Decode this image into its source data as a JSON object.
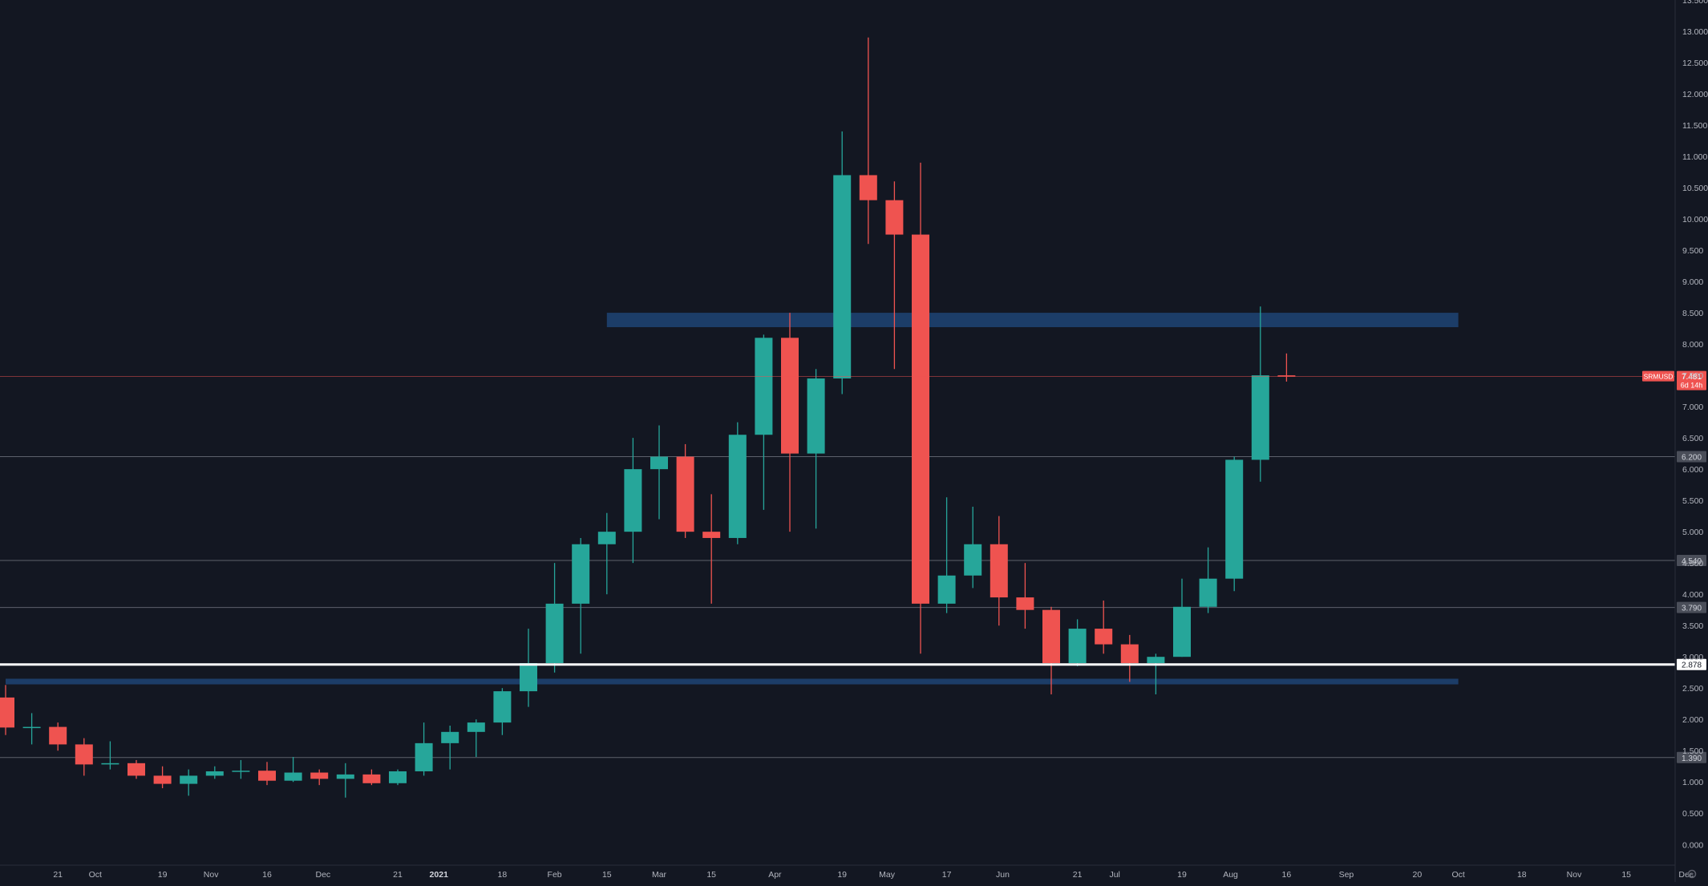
{
  "chart_data": {
    "type": "candlestick",
    "symbol": "SRMUSD",
    "timeframe": "weekly",
    "ylim": [
      -0.33,
      13.5
    ],
    "y_ticks": [
      "0.000",
      "0.500",
      "1.000",
      "1.500",
      "2.000",
      "2.500",
      "3.000",
      "3.500",
      "4.000",
      "4.500",
      "5.000",
      "5.500",
      "6.000",
      "6.500",
      "7.000",
      "7.500",
      "8.000",
      "8.500",
      "9.000",
      "9.500",
      "10.000",
      "10.500",
      "11.000",
      "11.500",
      "12.000",
      "12.500",
      "13.000",
      "13.500"
    ],
    "x_labels": [
      {
        "label": "21",
        "date": "2020-09-21"
      },
      {
        "label": "Oct",
        "date": "2020-10-01"
      },
      {
        "label": "19",
        "date": "2020-10-19"
      },
      {
        "label": "Nov",
        "date": "2020-11-01"
      },
      {
        "label": "16",
        "date": "2020-11-16"
      },
      {
        "label": "Dec",
        "date": "2020-12-01"
      },
      {
        "label": "21",
        "date": "2020-12-21"
      },
      {
        "label": "2021",
        "date": "2021-01-01"
      },
      {
        "label": "18",
        "date": "2021-01-18"
      },
      {
        "label": "Feb",
        "date": "2021-02-01"
      },
      {
        "label": "15",
        "date": "2021-02-15"
      },
      {
        "label": "Mar",
        "date": "2021-03-01"
      },
      {
        "label": "15",
        "date": "2021-03-15"
      },
      {
        "label": "Apr",
        "date": "2021-04-01"
      },
      {
        "label": "19",
        "date": "2021-04-19"
      },
      {
        "label": "May",
        "date": "2021-05-01"
      },
      {
        "label": "17",
        "date": "2021-05-17"
      },
      {
        "label": "Jun",
        "date": "2021-06-01"
      },
      {
        "label": "21",
        "date": "2021-06-21"
      },
      {
        "label": "Jul",
        "date": "2021-07-01"
      },
      {
        "label": "19",
        "date": "2021-07-19"
      },
      {
        "label": "Aug",
        "date": "2021-08-01"
      },
      {
        "label": "16",
        "date": "2021-08-16"
      },
      {
        "label": "Sep",
        "date": "2021-09-01"
      },
      {
        "label": "20",
        "date": "2021-09-20"
      },
      {
        "label": "Oct",
        "date": "2021-10-01"
      },
      {
        "label": "18",
        "date": "2021-10-18"
      },
      {
        "label": "Nov",
        "date": "2021-11-01"
      },
      {
        "label": "15",
        "date": "2021-11-15"
      },
      {
        "label": "Dec",
        "date": "2021-12-01"
      }
    ],
    "candles": [
      {
        "date": "2020-09-07",
        "open": 2.35,
        "high": 2.55,
        "low": 1.75,
        "close": 1.87
      },
      {
        "date": "2020-09-14",
        "open": 1.87,
        "high": 2.1,
        "low": 1.6,
        "close": 1.88
      },
      {
        "date": "2020-09-21",
        "open": 1.88,
        "high": 1.95,
        "low": 1.5,
        "close": 1.6
      },
      {
        "date": "2020-09-28",
        "open": 1.6,
        "high": 1.7,
        "low": 1.1,
        "close": 1.28
      },
      {
        "date": "2020-10-05",
        "open": 1.28,
        "high": 1.65,
        "low": 1.2,
        "close": 1.3
      },
      {
        "date": "2020-10-12",
        "open": 1.3,
        "high": 1.35,
        "low": 1.05,
        "close": 1.1
      },
      {
        "date": "2020-10-19",
        "open": 1.1,
        "high": 1.25,
        "low": 0.9,
        "close": 0.97
      },
      {
        "date": "2020-10-26",
        "open": 0.97,
        "high": 1.2,
        "low": 0.78,
        "close": 1.1
      },
      {
        "date": "2020-11-02",
        "open": 1.1,
        "high": 1.25,
        "low": 1.05,
        "close": 1.17
      },
      {
        "date": "2020-11-09",
        "open": 1.17,
        "high": 1.35,
        "low": 1.05,
        "close": 1.18
      },
      {
        "date": "2020-11-16",
        "open": 1.18,
        "high": 1.32,
        "low": 0.95,
        "close": 1.02
      },
      {
        "date": "2020-11-23",
        "open": 1.02,
        "high": 1.4,
        "low": 1.0,
        "close": 1.15
      },
      {
        "date": "2020-11-30",
        "open": 1.15,
        "high": 1.2,
        "low": 0.95,
        "close": 1.05
      },
      {
        "date": "2020-12-07",
        "open": 1.05,
        "high": 1.3,
        "low": 0.75,
        "close": 1.12
      },
      {
        "date": "2020-12-14",
        "open": 1.12,
        "high": 1.2,
        "low": 0.95,
        "close": 0.98
      },
      {
        "date": "2020-12-21",
        "open": 0.98,
        "high": 1.2,
        "low": 0.95,
        "close": 1.17
      },
      {
        "date": "2020-12-28",
        "open": 1.17,
        "high": 1.95,
        "low": 1.1,
        "close": 1.62
      },
      {
        "date": "2021-01-04",
        "open": 1.62,
        "high": 1.9,
        "low": 1.2,
        "close": 1.8
      },
      {
        "date": "2021-01-11",
        "open": 1.8,
        "high": 2.0,
        "low": 1.4,
        "close": 1.95
      },
      {
        "date": "2021-01-18",
        "open": 1.95,
        "high": 2.5,
        "low": 1.75,
        "close": 2.45
      },
      {
        "date": "2021-01-25",
        "open": 2.45,
        "high": 3.45,
        "low": 2.2,
        "close": 2.9
      },
      {
        "date": "2021-02-01",
        "open": 2.9,
        "high": 4.5,
        "low": 2.75,
        "close": 3.85
      },
      {
        "date": "2021-02-08",
        "open": 3.85,
        "high": 4.9,
        "low": 3.05,
        "close": 4.8
      },
      {
        "date": "2021-02-15",
        "open": 4.8,
        "high": 5.3,
        "low": 4.0,
        "close": 5.0
      },
      {
        "date": "2021-02-22",
        "open": 5.0,
        "high": 6.5,
        "low": 4.5,
        "close": 6.0
      },
      {
        "date": "2021-03-01",
        "open": 6.0,
        "high": 6.7,
        "low": 5.2,
        "close": 6.2
      },
      {
        "date": "2021-03-08",
        "open": 6.2,
        "high": 6.4,
        "low": 4.9,
        "close": 5.0
      },
      {
        "date": "2021-03-15",
        "open": 5.0,
        "high": 5.6,
        "low": 3.85,
        "close": 4.9
      },
      {
        "date": "2021-03-22",
        "open": 4.9,
        "high": 6.75,
        "low": 4.8,
        "close": 6.55
      },
      {
        "date": "2021-03-29",
        "open": 6.55,
        "high": 8.15,
        "low": 5.35,
        "close": 8.1
      },
      {
        "date": "2021-04-05",
        "open": 8.1,
        "high": 8.5,
        "low": 5.0,
        "close": 6.25
      },
      {
        "date": "2021-04-12",
        "open": 6.25,
        "high": 7.6,
        "low": 5.05,
        "close": 7.45
      },
      {
        "date": "2021-04-19",
        "open": 7.45,
        "high": 11.4,
        "low": 7.2,
        "close": 10.7
      },
      {
        "date": "2021-04-26",
        "open": 10.7,
        "high": 12.9,
        "low": 9.6,
        "close": 10.3
      },
      {
        "date": "2021-05-03",
        "open": 10.3,
        "high": 10.6,
        "low": 7.6,
        "close": 9.75
      },
      {
        "date": "2021-05-10",
        "open": 9.75,
        "high": 10.9,
        "low": 3.05,
        "close": 3.85
      },
      {
        "date": "2021-05-17",
        "open": 3.85,
        "high": 5.55,
        "low": 3.7,
        "close": 4.3
      },
      {
        "date": "2021-05-24",
        "open": 4.3,
        "high": 5.4,
        "low": 4.1,
        "close": 4.8
      },
      {
        "date": "2021-05-31",
        "open": 4.8,
        "high": 5.25,
        "low": 3.5,
        "close": 3.95
      },
      {
        "date": "2021-06-07",
        "open": 3.95,
        "high": 4.5,
        "low": 3.45,
        "close": 3.75
      },
      {
        "date": "2021-06-14",
        "open": 3.75,
        "high": 3.8,
        "low": 2.4,
        "close": 2.9
      },
      {
        "date": "2021-06-21",
        "open": 2.9,
        "high": 3.6,
        "low": 2.85,
        "close": 3.45
      },
      {
        "date": "2021-06-28",
        "open": 3.45,
        "high": 3.9,
        "low": 3.05,
        "close": 3.2
      },
      {
        "date": "2021-07-05",
        "open": 3.2,
        "high": 3.35,
        "low": 2.6,
        "close": 2.9
      },
      {
        "date": "2021-07-12",
        "open": 2.9,
        "high": 3.05,
        "low": 2.4,
        "close": 3.0
      },
      {
        "date": "2021-07-19",
        "open": 3.0,
        "high": 4.25,
        "low": 3.0,
        "close": 3.8
      },
      {
        "date": "2021-07-26",
        "open": 3.8,
        "high": 4.75,
        "low": 3.7,
        "close": 4.25
      },
      {
        "date": "2021-08-02",
        "open": 4.25,
        "high": 6.2,
        "low": 4.05,
        "close": 6.15
      },
      {
        "date": "2021-08-09",
        "open": 6.15,
        "high": 8.6,
        "low": 5.8,
        "close": 7.5
      },
      {
        "date": "2021-08-16",
        "open": 7.5,
        "high": 7.85,
        "low": 7.4,
        "close": 7.481
      }
    ],
    "zones": [
      {
        "from_date": "2021-02-15",
        "to_date": "2021-10-01",
        "low": 8.27,
        "high": 8.5
      },
      {
        "from_date": "2020-09-07",
        "to_date": "2021-10-01",
        "low": 2.56,
        "high": 2.65
      }
    ],
    "horizontal_levels": [
      {
        "value": 6.2,
        "label": "6.200"
      },
      {
        "value": 4.54,
        "label": "4.540"
      },
      {
        "value": 3.79,
        "label": "3.790"
      },
      {
        "value": 1.39,
        "label": "1.390"
      }
    ],
    "highlight_level": {
      "value": 2.878,
      "label": "2.878"
    },
    "current_price": {
      "value": 7.481,
      "label": "7.481",
      "countdown": "6d 14h"
    },
    "colors": {
      "background": "#131722",
      "up": "#26a69a",
      "down": "#ef5350",
      "zone": "#1e4170",
      "level": "#5d606b",
      "text": "#b2b5be",
      "highlight": "#ffffff",
      "current": "#ef5350"
    }
  },
  "ui": {
    "settings_icon": "gear-icon"
  }
}
